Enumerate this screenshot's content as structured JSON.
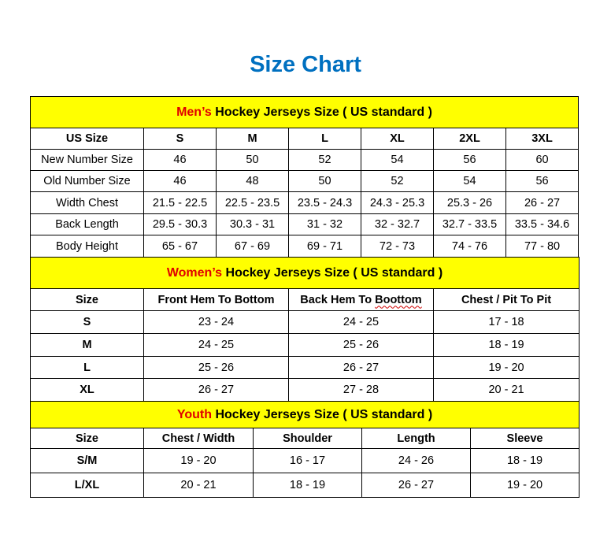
{
  "title": "Size Chart",
  "colors": {
    "title": "#0070c0",
    "header_bg": "#ffff00",
    "accent_red": "#e00000"
  },
  "sections": [
    {
      "id": "men",
      "header_accent": "Men’s",
      "header_rest": " Hockey Jerseys Size ( US standard )",
      "columns": [
        "US Size",
        "S",
        "M",
        "L",
        "XL",
        "2XL",
        "3XL"
      ],
      "rows": [
        [
          "New Number Size",
          "46",
          "50",
          "52",
          "54",
          "56",
          "60"
        ],
        [
          "Old Number Size",
          "46",
          "48",
          "50",
          "52",
          "54",
          "56"
        ],
        [
          "Width Chest",
          "21.5 - 22.5",
          "22.5 - 23.5",
          "23.5 - 24.3",
          "24.3 - 25.3",
          "25.3 - 26",
          "26 - 27"
        ],
        [
          "Back Length",
          "29.5 - 30.3",
          "30.3 - 31",
          "31 - 32",
          "32 - 32.7",
          "32.7 - 33.5",
          "33.5 - 34.6"
        ],
        [
          "Body Height",
          "65 - 67",
          "67 - 69",
          "69 - 71",
          "72 - 73",
          "74 - 76",
          "77 - 80"
        ]
      ]
    },
    {
      "id": "women",
      "header_accent": "Women’s",
      "header_rest": " Hockey Jerseys Size ( US standard )",
      "columns": [
        "Size",
        "Front Hem To Bottom",
        "Back Hem To Boottom",
        "Chest / Pit To Pit"
      ],
      "rows": [
        [
          "S",
          "23 - 24",
          "24 - 25",
          "17 - 18"
        ],
        [
          "M",
          "24 - 25",
          "25 - 26",
          "18 - 19"
        ],
        [
          "L",
          "25 - 26",
          "26 - 27",
          "19 - 20"
        ],
        [
          "XL",
          "26 - 27",
          "27 - 28",
          "20 - 21"
        ]
      ]
    },
    {
      "id": "youth",
      "header_accent": "Youth",
      "header_rest": " Hockey Jerseys Size ( US standard )",
      "columns": [
        "Size",
        "Chest / Width",
        "Shoulder",
        "Length",
        "Sleeve"
      ],
      "rows": [
        [
          "S/M",
          "19 - 20",
          "16 - 17",
          "24 - 26",
          "18 - 19"
        ],
        [
          "L/XL",
          "20 - 21",
          "18 - 19",
          "26 - 27",
          "19 - 20"
        ]
      ]
    }
  ]
}
